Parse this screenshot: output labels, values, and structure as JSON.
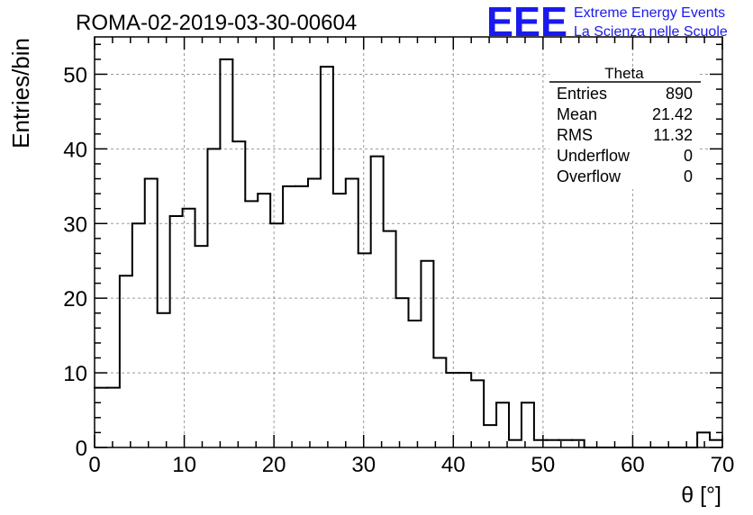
{
  "header": {
    "run_title": "ROMA-02-2019-03-30-00604",
    "logo_text": "EEE",
    "logo_line1": "Extreme Energy Events",
    "logo_line2": "La Scienza nelle Scuole",
    "logo_color": "#1a1aee"
  },
  "stats_box": {
    "title": "Theta",
    "rows": [
      {
        "label": "Entries",
        "value": "890"
      },
      {
        "label": "Mean",
        "value": "21.42"
      },
      {
        "label": "RMS",
        "value": "11.32"
      },
      {
        "label": "Underflow",
        "value": "0"
      },
      {
        "label": "Overflow",
        "value": "0"
      }
    ]
  },
  "chart_data": {
    "type": "histogram",
    "xlabel": "θ [°]",
    "ylabel": "Entries/bin",
    "xlim": [
      0,
      70
    ],
    "ylim": [
      0,
      55
    ],
    "bin_width": 1.4,
    "x_ticks": [
      0,
      10,
      20,
      30,
      40,
      50,
      60,
      70
    ],
    "y_ticks": [
      0,
      10,
      20,
      30,
      40,
      50
    ],
    "grid": true,
    "bin_edges": [
      0,
      1.4,
      2.8,
      4.2,
      5.6,
      7.0,
      8.4,
      9.8,
      11.2,
      12.6,
      14.0,
      15.4,
      16.8,
      18.2,
      19.6,
      21.0,
      22.4,
      23.8,
      25.2,
      26.6,
      28.0,
      29.4,
      30.8,
      32.2,
      33.6,
      35.0,
      36.4,
      37.8,
      39.2,
      40.6,
      42.0,
      43.4,
      44.8,
      46.2,
      47.6,
      49.0,
      50.4,
      51.8,
      53.2,
      54.6,
      56.0,
      57.4,
      58.8,
      60.2,
      61.6,
      63.0,
      64.4,
      65.8,
      67.2,
      68.6,
      70.0
    ],
    "values": [
      8,
      8,
      23,
      30,
      36,
      18,
      31,
      32,
      27,
      40,
      52,
      41,
      33,
      34,
      30,
      35,
      35,
      36,
      51,
      34,
      36,
      26,
      39,
      29,
      20,
      17,
      25,
      12,
      10,
      10,
      9,
      3,
      6,
      1,
      6,
      1,
      1,
      1,
      1,
      0,
      0,
      0,
      0,
      0,
      0,
      0,
      0,
      0,
      2,
      1
    ]
  }
}
